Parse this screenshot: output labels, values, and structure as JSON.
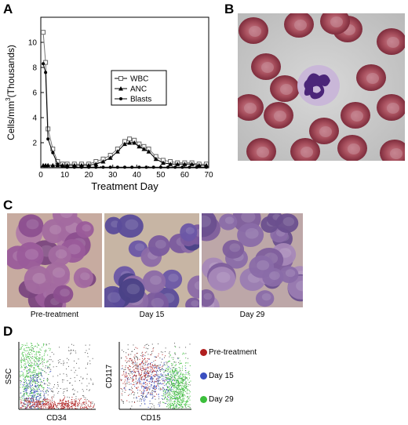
{
  "panels": {
    "a": "A",
    "b": "B",
    "c": "C",
    "d": "D"
  },
  "chart_data": {
    "type": "line",
    "xlabel": "Treatment Day",
    "ylabel_main": "Cells/mm",
    "ylabel_sup": "3",
    "ylabel_tail": "(Thousands)",
    "xlim": [
      0,
      70
    ],
    "ylim": [
      0,
      12
    ],
    "xticks": [
      0,
      10,
      20,
      30,
      40,
      50,
      60,
      70
    ],
    "yticks": [
      2,
      4,
      6,
      8,
      10
    ],
    "legend_position": "center-right",
    "series": [
      {
        "name": "WBC",
        "marker": "open-square",
        "x": [
          1,
          2,
          3,
          5,
          7,
          9,
          11,
          14,
          17,
          20,
          23,
          26,
          29,
          32,
          35,
          37,
          39,
          41,
          43,
          45,
          48,
          51,
          54,
          57,
          60,
          63,
          66,
          69
        ],
        "y": [
          10.8,
          8.4,
          3.1,
          1.5,
          0.5,
          0.3,
          0.3,
          0.3,
          0.3,
          0.3,
          0.5,
          0.7,
          1.0,
          1.5,
          2.1,
          2.3,
          2.2,
          1.9,
          1.7,
          1.5,
          0.9,
          0.6,
          0.5,
          0.4,
          0.4,
          0.4,
          0.3,
          0.3
        ]
      },
      {
        "name": "ANC",
        "marker": "filled-triangle",
        "x": [
          1,
          2,
          3,
          5,
          7,
          9,
          11,
          14,
          17,
          20,
          23,
          26,
          29,
          32,
          35,
          37,
          39,
          41,
          43,
          45,
          48,
          51,
          54,
          57,
          60,
          63,
          66,
          69
        ],
        "y": [
          0.2,
          0.2,
          0.2,
          0.2,
          0.2,
          0.2,
          0.2,
          0.2,
          0.2,
          0.2,
          0.3,
          0.5,
          0.8,
          1.3,
          1.9,
          2.0,
          2.0,
          1.7,
          1.5,
          1.3,
          0.7,
          0.4,
          0.3,
          0.3,
          0.3,
          0.3,
          0.2,
          0.2
        ]
      },
      {
        "name": "Blasts",
        "marker": "filled-circle",
        "x": [
          1,
          2,
          3,
          5,
          7,
          9,
          11,
          14,
          17,
          20,
          23,
          26,
          29,
          32,
          35,
          38,
          41,
          44,
          47,
          50,
          53,
          56,
          59,
          62,
          65,
          69
        ],
        "y": [
          8.3,
          7.6,
          2.3,
          1.2,
          0.3,
          0.1,
          0.05,
          0.05,
          0.05,
          0.05,
          0.05,
          0.05,
          0.05,
          0.05,
          0.05,
          0.05,
          0.05,
          0.05,
          0.05,
          0.05,
          0.05,
          0.05,
          0.05,
          0.05,
          0.05,
          0.05
        ]
      }
    ]
  },
  "panel_c": {
    "captions": [
      "Pre-treatment",
      "Day 15",
      "Day 29"
    ]
  },
  "panel_d": {
    "plot1": {
      "xlabel": "CD34",
      "ylabel": "SSC"
    },
    "plot2": {
      "xlabel": "CD15",
      "ylabel": "CD117"
    },
    "legend": [
      {
        "label": "Pre-treatment",
        "color": "#b01e1e"
      },
      {
        "label": "Day 15",
        "color": "#3a4fc0"
      },
      {
        "label": "Day 29",
        "color": "#3bbf3b"
      }
    ]
  }
}
